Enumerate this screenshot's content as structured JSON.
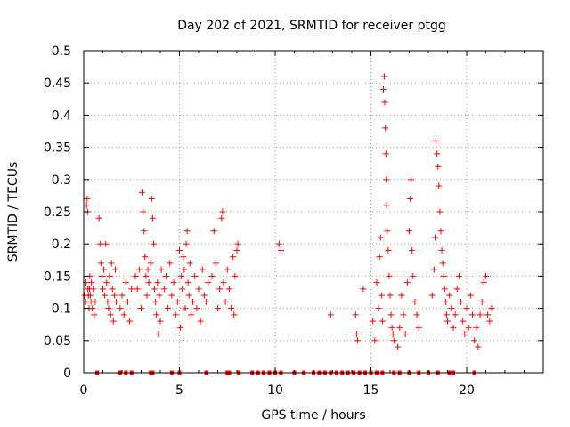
{
  "chart_data": {
    "type": "scatter",
    "title": "Day 202 of 2021, SRMTID for receiver ptgg",
    "xlabel": "GPS time / hours",
    "ylabel": "SRMTID / TECUs",
    "xlim": [
      0,
      24
    ],
    "ylim": [
      0,
      0.5
    ],
    "xticks": [
      0,
      5,
      10,
      15,
      20
    ],
    "xtick_labels": [
      "0",
      "5",
      "10",
      "15",
      "20"
    ],
    "yticks": [
      0,
      0.05,
      0.1,
      0.15,
      0.2,
      0.25,
      0.3,
      0.35,
      0.4,
      0.45,
      0.5
    ],
    "ytick_labels": [
      "0",
      "0.05",
      "0.1",
      "0.15",
      "0.2",
      "0.25",
      "0.3",
      "0.35",
      "0.4",
      "0.45",
      "0.5"
    ],
    "grid": true,
    "marker": "+",
    "series": [
      {
        "name": "SRMTID",
        "color": "#ff0000",
        "points": [
          [
            0.05,
            0.12
          ],
          [
            0.1,
            0.11
          ],
          [
            0.12,
            0.14
          ],
          [
            0.15,
            0.26
          ],
          [
            0.18,
            0.27
          ],
          [
            0.2,
            0.25
          ],
          [
            0.22,
            0.13
          ],
          [
            0.25,
            0.12
          ],
          [
            0.28,
            0.1
          ],
          [
            0.3,
            0.13
          ],
          [
            0.32,
            0.15
          ],
          [
            0.35,
            0.12
          ],
          [
            0.38,
            0.11
          ],
          [
            0.4,
            0.14
          ],
          [
            0.45,
            0.1
          ],
          [
            0.5,
            0.13
          ],
          [
            0.55,
            0.09
          ],
          [
            0.6,
            0.11
          ],
          [
            0.8,
            0.24
          ],
          [
            0.85,
            0.2
          ],
          [
            0.9,
            0.17
          ],
          [
            0.95,
            0.15
          ],
          [
            1.0,
            0.13
          ],
          [
            1.05,
            0.16
          ],
          [
            1.1,
            0.12
          ],
          [
            1.15,
            0.2
          ],
          [
            1.2,
            0.14
          ],
          [
            1.25,
            0.11
          ],
          [
            1.3,
            0.1
          ],
          [
            1.35,
            0.15
          ],
          [
            1.4,
            0.09
          ],
          [
            1.45,
            0.17
          ],
          [
            1.5,
            0.13
          ],
          [
            1.55,
            0.08
          ],
          [
            1.6,
            0.12
          ],
          [
            1.65,
            0.16
          ],
          [
            1.7,
            0.11
          ],
          [
            1.9,
            0.1
          ],
          [
            2.0,
            0.12
          ],
          [
            2.1,
            0.09
          ],
          [
            2.2,
            0.14
          ],
          [
            2.3,
            0.11
          ],
          [
            2.4,
            0.08
          ],
          [
            2.5,
            0.13
          ],
          [
            2.7,
            0.15
          ],
          [
            2.8,
            0.13
          ],
          [
            2.9,
            0.16
          ],
          [
            3.0,
            0.1
          ],
          [
            3.05,
            0.28
          ],
          [
            3.1,
            0.25
          ],
          [
            3.15,
            0.22
          ],
          [
            3.2,
            0.18
          ],
          [
            3.25,
            0.15
          ],
          [
            3.3,
            0.12
          ],
          [
            3.35,
            0.16
          ],
          [
            3.4,
            0.14
          ],
          [
            3.5,
            0.17
          ],
          [
            3.55,
            0.27
          ],
          [
            3.6,
            0.24
          ],
          [
            3.65,
            0.2
          ],
          [
            3.7,
            0.13
          ],
          [
            3.75,
            0.11
          ],
          [
            3.8,
            0.09
          ],
          [
            3.85,
            0.14
          ],
          [
            3.9,
            0.06
          ],
          [
            3.95,
            0.12
          ],
          [
            4.0,
            0.08
          ],
          [
            4.05,
            0.16
          ],
          [
            4.2,
            0.13
          ],
          [
            4.3,
            0.15
          ],
          [
            4.4,
            0.1
          ],
          [
            4.5,
            0.17
          ],
          [
            4.6,
            0.12
          ],
          [
            4.7,
            0.14
          ],
          [
            4.8,
            0.09
          ],
          [
            4.9,
            0.11
          ],
          [
            5.0,
            0.19
          ],
          [
            5.05,
            0.07
          ],
          [
            5.1,
            0.15
          ],
          [
            5.15,
            0.13
          ],
          [
            5.2,
            0.18
          ],
          [
            5.25,
            0.16
          ],
          [
            5.3,
            0.1
          ],
          [
            5.35,
            0.2
          ],
          [
            5.4,
            0.22
          ],
          [
            5.45,
            0.14
          ],
          [
            5.5,
            0.12
          ],
          [
            5.55,
            0.17
          ],
          [
            5.6,
            0.09
          ],
          [
            5.7,
            0.11
          ],
          [
            5.8,
            0.15
          ],
          [
            5.9,
            0.1
          ],
          [
            6.0,
            0.13
          ],
          [
            6.1,
            0.08
          ],
          [
            6.2,
            0.16
          ],
          [
            6.3,
            0.12
          ],
          [
            6.4,
            0.11
          ],
          [
            6.5,
            0.14
          ],
          [
            6.7,
            0.15
          ],
          [
            6.8,
            0.22
          ],
          [
            6.9,
            0.17
          ],
          [
            7.0,
            0.1
          ],
          [
            7.1,
            0.13
          ],
          [
            7.2,
            0.24
          ],
          [
            7.25,
            0.25
          ],
          [
            7.3,
            0.14
          ],
          [
            7.4,
            0.11
          ],
          [
            7.5,
            0.16
          ],
          [
            7.6,
            0.13
          ],
          [
            7.7,
            0.1
          ],
          [
            7.8,
            0.18
          ],
          [
            7.85,
            0.09
          ],
          [
            7.9,
            0.15
          ],
          [
            8.0,
            0.19
          ],
          [
            8.05,
            0.2
          ],
          [
            10.2,
            0.2
          ],
          [
            10.3,
            0.19
          ],
          [
            12.9,
            0.09
          ],
          [
            14.2,
            0.09
          ],
          [
            14.25,
            0.06
          ],
          [
            14.3,
            0.05
          ],
          [
            14.6,
            0.13
          ],
          [
            15.1,
            0.08
          ],
          [
            15.2,
            0.05
          ],
          [
            15.3,
            0.14
          ],
          [
            15.4,
            0.1
          ],
          [
            15.45,
            0.18
          ],
          [
            15.5,
            0.21
          ],
          [
            15.55,
            0.12
          ],
          [
            15.6,
            0.08
          ],
          [
            15.65,
            0.44
          ],
          [
            15.7,
            0.46
          ],
          [
            15.72,
            0.42
          ],
          [
            15.75,
            0.38
          ],
          [
            15.78,
            0.34
          ],
          [
            15.8,
            0.3
          ],
          [
            15.82,
            0.26
          ],
          [
            15.85,
            0.22
          ],
          [
            15.9,
            0.19
          ],
          [
            15.95,
            0.15
          ],
          [
            16.0,
            0.12
          ],
          [
            16.05,
            0.09
          ],
          [
            16.1,
            0.07
          ],
          [
            16.15,
            0.06
          ],
          [
            16.2,
            0.05
          ],
          [
            16.4,
            0.04
          ],
          [
            16.5,
            0.07
          ],
          [
            16.6,
            0.12
          ],
          [
            16.7,
            0.09
          ],
          [
            16.8,
            0.06
          ],
          [
            16.9,
            0.14
          ],
          [
            17.0,
            0.22
          ],
          [
            17.05,
            0.27
          ],
          [
            17.1,
            0.3
          ],
          [
            17.15,
            0.19
          ],
          [
            17.2,
            0.15
          ],
          [
            17.3,
            0.11
          ],
          [
            17.4,
            0.09
          ],
          [
            17.5,
            0.07
          ],
          [
            18.2,
            0.12
          ],
          [
            18.3,
            0.16
          ],
          [
            18.35,
            0.21
          ],
          [
            18.4,
            0.36
          ],
          [
            18.45,
            0.34
          ],
          [
            18.5,
            0.32
          ],
          [
            18.55,
            0.29
          ],
          [
            18.6,
            0.25
          ],
          [
            18.65,
            0.22
          ],
          [
            18.7,
            0.19
          ],
          [
            18.75,
            0.17
          ],
          [
            18.8,
            0.15
          ],
          [
            18.85,
            0.13
          ],
          [
            18.9,
            0.11
          ],
          [
            18.95,
            0.09
          ],
          [
            19.0,
            0.08
          ],
          [
            19.1,
            0.12
          ],
          [
            19.2,
            0.1
          ],
          [
            19.3,
            0.07
          ],
          [
            19.4,
            0.09
          ],
          [
            19.5,
            0.13
          ],
          [
            19.6,
            0.15
          ],
          [
            19.7,
            0.11
          ],
          [
            19.8,
            0.08
          ],
          [
            19.9,
            0.06
          ],
          [
            20.0,
            0.1
          ],
          [
            20.1,
            0.07
          ],
          [
            20.2,
            0.12
          ],
          [
            20.3,
            0.09
          ],
          [
            20.4,
            0.05
          ],
          [
            20.5,
            0.07
          ],
          [
            20.6,
            0.04
          ],
          [
            20.7,
            0.09
          ],
          [
            20.8,
            0.11
          ],
          [
            20.9,
            0.14
          ],
          [
            21.0,
            0.15
          ],
          [
            21.1,
            0.09
          ],
          [
            21.2,
            0.08
          ],
          [
            21.3,
            0.1
          ]
        ]
      }
    ],
    "baseline_points_x": [
      0.7,
      1.9,
      2.2,
      2.5,
      3.5,
      3.6,
      4.6,
      5.0,
      6.4,
      7.5,
      7.6,
      8.1,
      8.8,
      9.1,
      9.4,
      9.7,
      10.0,
      10.3,
      11.0,
      11.5,
      12.0,
      12.3,
      12.6,
      12.9,
      13.2,
      13.5,
      13.8,
      14.1,
      14.4,
      14.7,
      15.0,
      15.3,
      15.6,
      16.2,
      16.5,
      17.0,
      17.5,
      18.0,
      18.5,
      19.1,
      19.3,
      20.4
    ]
  }
}
